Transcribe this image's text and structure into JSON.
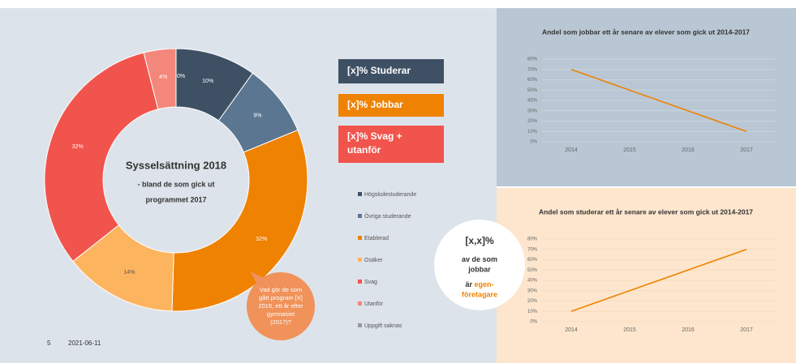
{
  "chart_data": [
    {
      "type": "pie",
      "title": "Sysselsättning 2018",
      "subtitle": [
        "- bland de som gick ut",
        "programmet 2017"
      ],
      "categories": [
        "Högskolestuderande",
        "Övriga studerande",
        "Etablerad",
        "Osäker",
        "Svag",
        "Utanför",
        "Uppgift saknas"
      ],
      "values": [
        10,
        9,
        32,
        14,
        32,
        4,
        0
      ],
      "value_labels": [
        "10%",
        "9%",
        "32%",
        "14%",
        "32%",
        "4%",
        "0%"
      ],
      "colors": [
        "#3e5064",
        "#5b7690",
        "#ef8200",
        "#fdb45f",
        "#f1544c",
        "#f4877c",
        "#9a9a9a"
      ]
    },
    {
      "type": "line",
      "title": "Andel som jobbar ett år senare av elever som gick ut 2014-2017",
      "categories": [
        "2014",
        "2015",
        "2016",
        "2017"
      ],
      "values": [
        70,
        50,
        30,
        10
      ],
      "color": "#ef8200",
      "ylim": [
        0,
        80
      ],
      "yticks": [
        {
          "value": 0,
          "label": "0%"
        },
        {
          "value": 10,
          "label": "10%"
        },
        {
          "value": 20,
          "label": "20%"
        },
        {
          "value": 30,
          "label": "30%"
        },
        {
          "value": 40,
          "label": "40%"
        },
        {
          "value": 50,
          "label": "50%"
        },
        {
          "value": 60,
          "label": "60%"
        },
        {
          "value": 70,
          "label": "70%"
        },
        {
          "value": 80,
          "label": "80%"
        }
      ],
      "grid": true
    },
    {
      "type": "line",
      "title": "Andel som studerar ett år senare av elever som gick ut 2014-2017",
      "categories": [
        "2014",
        "2015",
        "2016",
        "2017"
      ],
      "values": [
        10,
        30,
        50,
        70
      ],
      "color": "#ef8200",
      "ylim": [
        0,
        80
      ],
      "yticks": [
        {
          "value": 0,
          "label": "0%"
        },
        {
          "value": 10,
          "label": "10%"
        },
        {
          "value": 20,
          "label": "20%"
        },
        {
          "value": 30,
          "label": "30%"
        },
        {
          "value": 40,
          "label": "40%"
        },
        {
          "value": 50,
          "label": "50%"
        },
        {
          "value": 60,
          "label": "60%"
        },
        {
          "value": 70,
          "label": "70%"
        },
        {
          "value": 80,
          "label": "80%"
        }
      ],
      "grid": true
    }
  ],
  "callouts": {
    "boxes": [
      "[x]% Studerar",
      "[x]% Jobbar",
      [
        "[x]% Svag +",
        "utanför"
      ]
    ],
    "bubble": [
      "Vad gör de som",
      "gått program [X]",
      "2016, ett år efter",
      "gymnasiet",
      "(2017)?"
    ],
    "circle": {
      "lines": [
        "[x,x]%",
        "av de som",
        "jobbar"
      ],
      "prefix": "är",
      "highlight": [
        "egen-",
        "företagare"
      ]
    }
  },
  "footer": {
    "page": "5",
    "date": "2021-06-11"
  }
}
